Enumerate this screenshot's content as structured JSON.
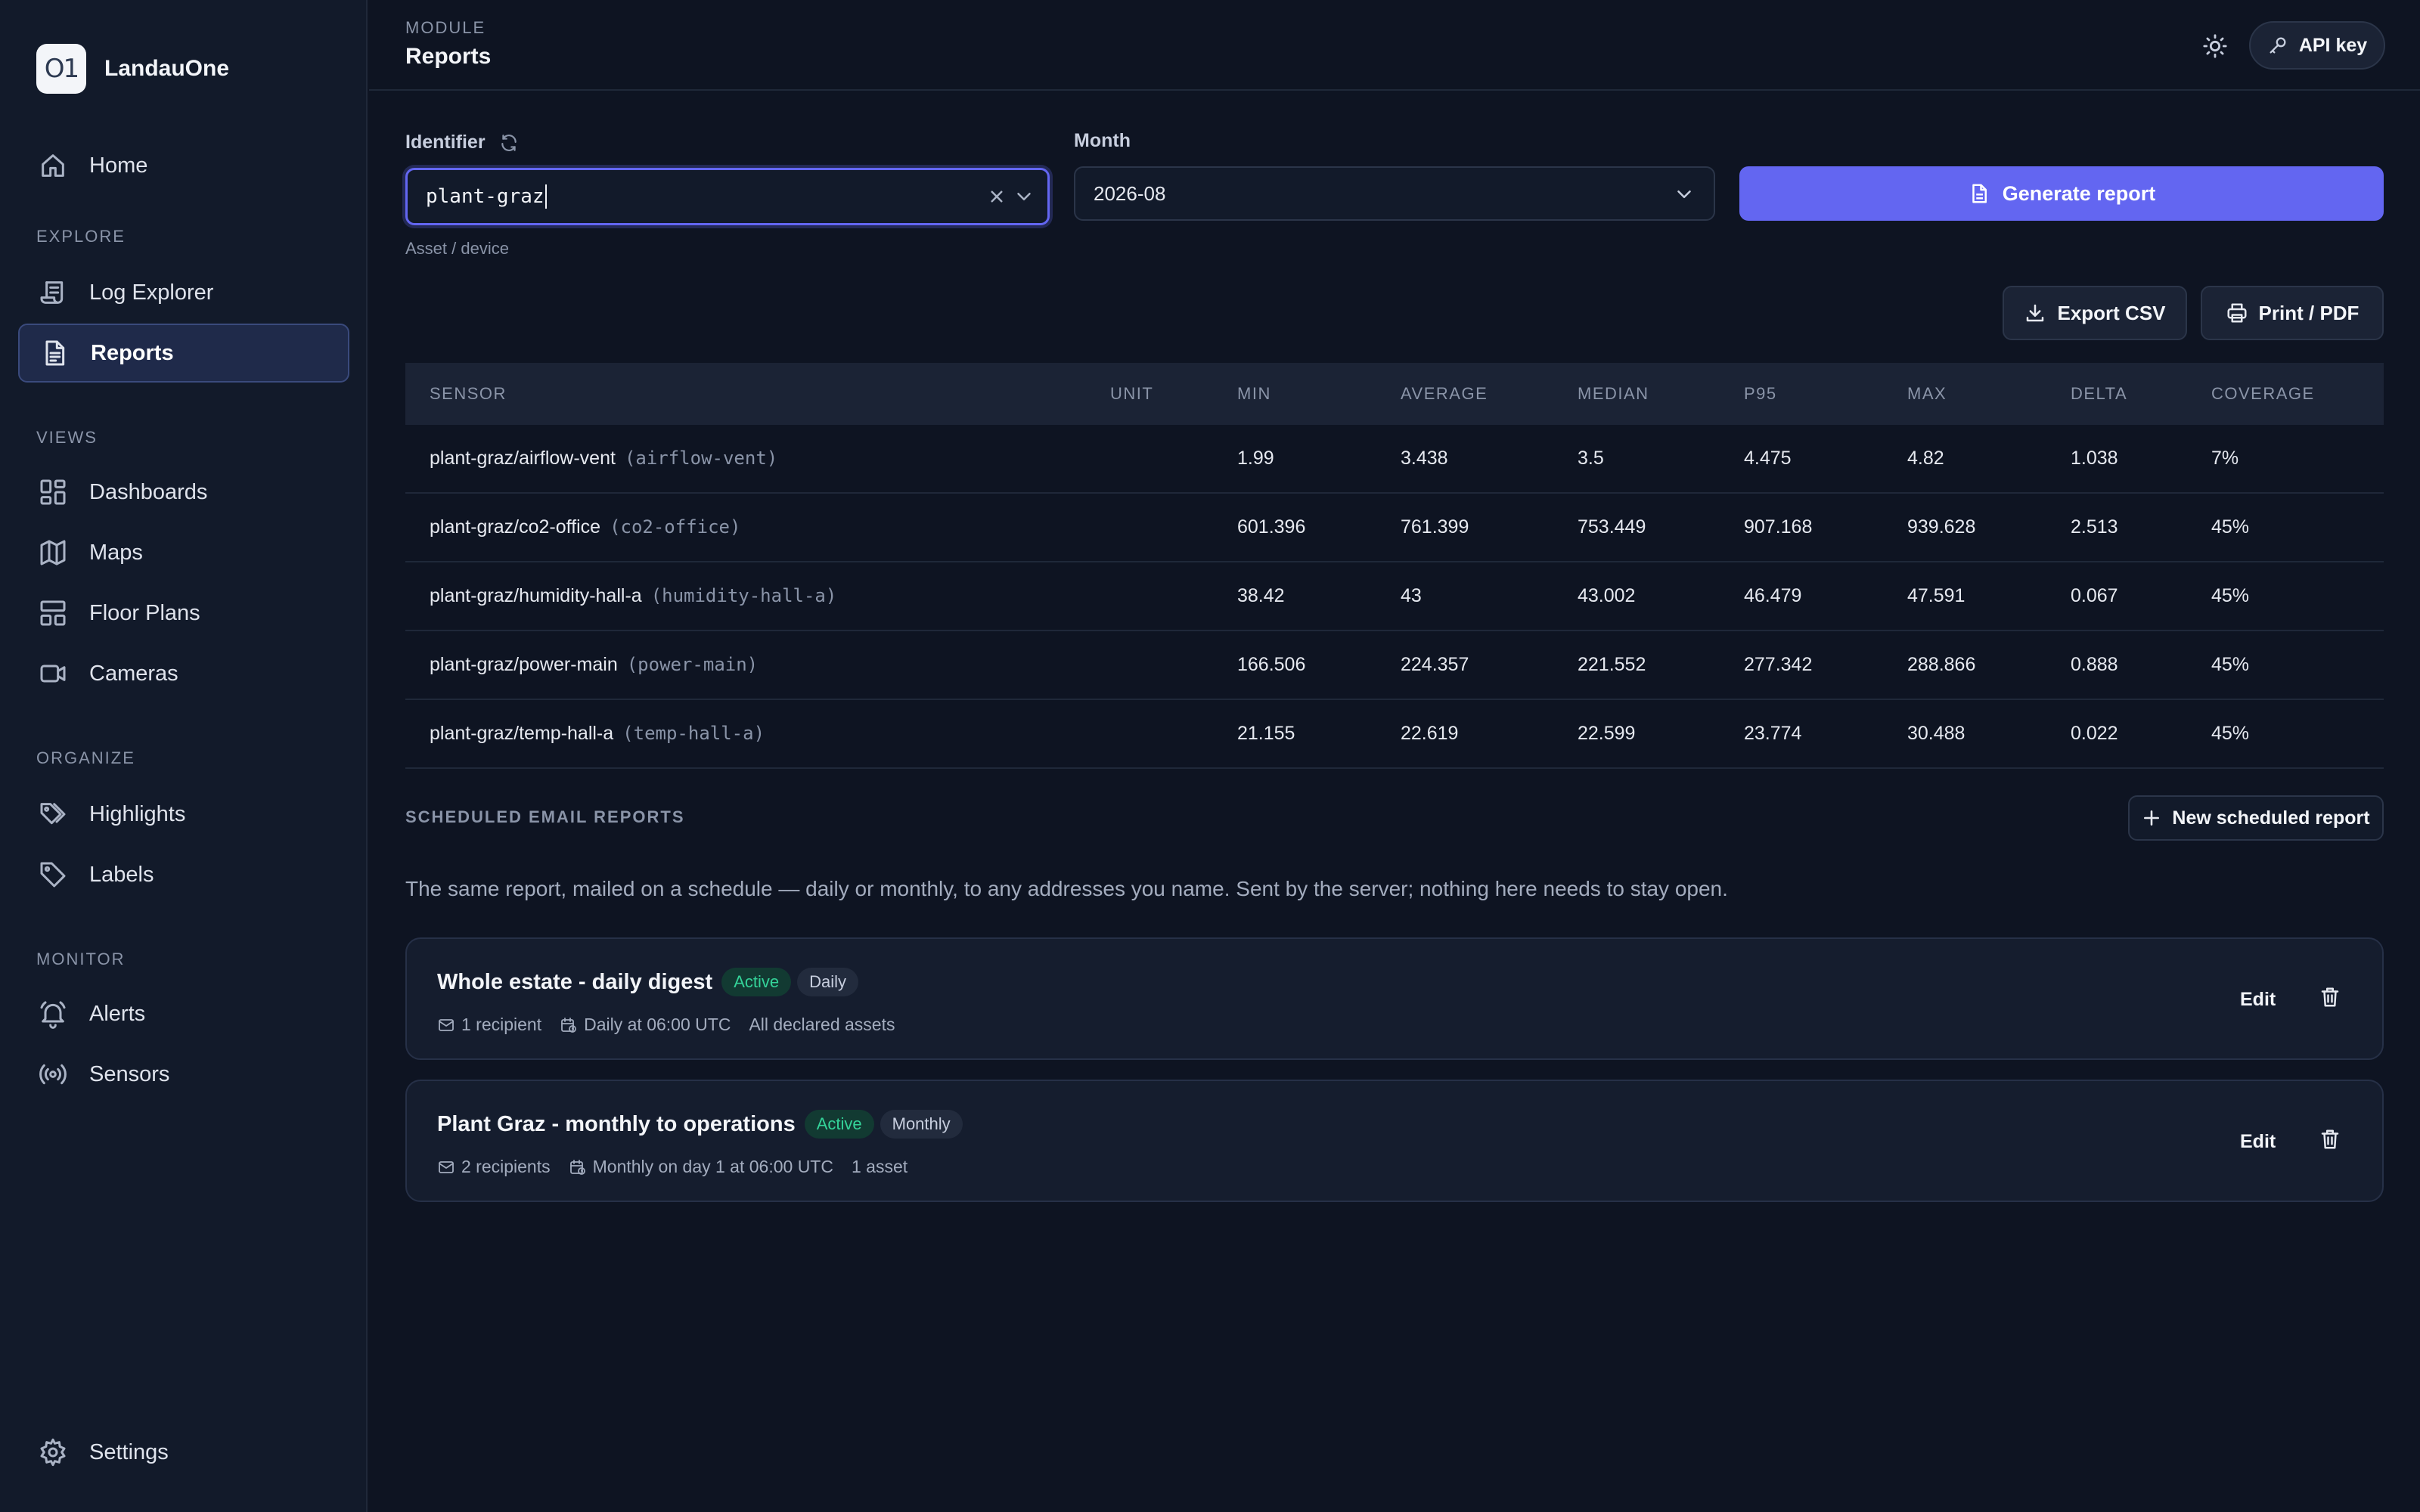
{
  "app": {
    "name": "LandauOne",
    "logo_text": "O1"
  },
  "sidebar": {
    "home": {
      "label": "Home",
      "icon": "home-icon"
    },
    "sections": {
      "explore": "EXPLORE",
      "views": "VIEWS",
      "organize": "ORGANIZE",
      "monitor": "MONITOR"
    },
    "items": {
      "log_explorer": "Log Explorer",
      "reports": "Reports",
      "dashboards": "Dashboards",
      "maps": "Maps",
      "floor_plans": "Floor Plans",
      "cameras": "Cameras",
      "highlights": "Highlights",
      "labels": "Labels",
      "alerts": "Alerts",
      "sensors": "Sensors",
      "settings": "Settings"
    },
    "active": "reports"
  },
  "header": {
    "module_label": "MODULE",
    "module_title": "Reports",
    "api_key_label": "API key"
  },
  "form": {
    "identifier_label": "Identifier",
    "identifier_value": "plant-graz",
    "identifier_hint": "Asset / device",
    "month_label": "Month",
    "month_value": "2026-08",
    "generate_label": "Generate report",
    "export_csv_label": "Export CSV",
    "print_pdf_label": "Print / PDF"
  },
  "table": {
    "headers": {
      "sensor": "SENSOR",
      "unit": "UNIT",
      "min": "MIN",
      "average": "AVERAGE",
      "median": "MEDIAN",
      "p95": "P95",
      "max": "MAX",
      "delta": "DELTA",
      "coverage": "COVERAGE"
    },
    "rows": [
      {
        "sensor": "plant-graz/airflow-vent",
        "code": "(airflow-vent)",
        "unit": "",
        "min": "1.99",
        "average": "3.438",
        "median": "3.5",
        "p95": "4.475",
        "max": "4.82",
        "delta": "1.038",
        "coverage": "7%"
      },
      {
        "sensor": "plant-graz/co2-office",
        "code": "(co2-office)",
        "unit": "",
        "min": "601.396",
        "average": "761.399",
        "median": "753.449",
        "p95": "907.168",
        "max": "939.628",
        "delta": "2.513",
        "coverage": "45%"
      },
      {
        "sensor": "plant-graz/humidity-hall-a",
        "code": "(humidity-hall-a)",
        "unit": "",
        "min": "38.42",
        "average": "43",
        "median": "43.002",
        "p95": "46.479",
        "max": "47.591",
        "delta": "0.067",
        "coverage": "45%"
      },
      {
        "sensor": "plant-graz/power-main",
        "code": "(power-main)",
        "unit": "",
        "min": "166.506",
        "average": "224.357",
        "median": "221.552",
        "p95": "277.342",
        "max": "288.866",
        "delta": "0.888",
        "coverage": "45%"
      },
      {
        "sensor": "plant-graz/temp-hall-a",
        "code": "(temp-hall-a)",
        "unit": "",
        "min": "21.155",
        "average": "22.619",
        "median": "22.599",
        "p95": "23.774",
        "max": "30.488",
        "delta": "0.022",
        "coverage": "45%"
      }
    ]
  },
  "scheduled": {
    "title": "SCHEDULED EMAIL REPORTS",
    "new_label": "New scheduled report",
    "description": "The same report, mailed on a schedule — daily or monthly, to any addresses you name. Sent by the server; nothing here needs to stay open.",
    "edit_label": "Edit",
    "cards": [
      {
        "name": "Whole estate - daily digest",
        "status": "Active",
        "frequency": "Daily",
        "recipients": "1 recipient",
        "schedule": "Daily at 06:00 UTC",
        "scope": "All declared assets"
      },
      {
        "name": "Plant Graz - monthly to operations",
        "status": "Active",
        "frequency": "Monthly",
        "recipients": "2 recipients",
        "schedule": "Monthly on day 1 at 06:00 UTC",
        "scope": "1 asset"
      }
    ]
  },
  "colors": {
    "accent": "#6366f1",
    "background": "#0e1422",
    "sidebar": "#121a2a",
    "active_badge": "#34d399"
  }
}
